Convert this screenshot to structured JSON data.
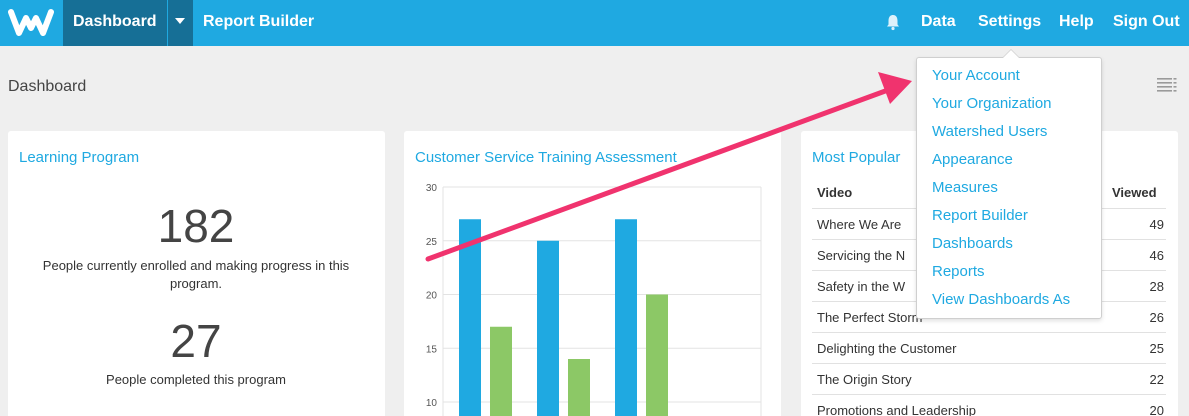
{
  "nav": {
    "dashboard": "Dashboard",
    "report_builder": "Report Builder",
    "data": "Data",
    "settings": "Settings",
    "help": "Help",
    "sign_out": "Sign Out"
  },
  "page": {
    "title": "Dashboard"
  },
  "learning_card": {
    "title": "Learning Program",
    "enrolled_value": "182",
    "enrolled_caption": "People currently enrolled and making progress in this program.",
    "completed_value": "27",
    "completed_caption": "People completed this program"
  },
  "chart_card": {
    "title": "Customer Service Training Assessment"
  },
  "chart_data": {
    "type": "bar",
    "title": "Customer Service Training Assessment",
    "y_ticks": [
      "30",
      "25",
      "20",
      "15",
      "10"
    ],
    "ylim": [
      10,
      30
    ],
    "grid": true,
    "series": [
      {
        "values": [
          27,
          25,
          27
        ],
        "color": "#1fa9e1"
      },
      {
        "values": [
          17,
          14,
          20
        ],
        "color": "#8cc866"
      }
    ]
  },
  "video_card": {
    "title": "Most Popular",
    "col_video": "Video",
    "col_viewed": "Viewed",
    "rows": [
      {
        "video": "Where We Are",
        "viewed": "49"
      },
      {
        "video": "Servicing the N",
        "viewed": "46"
      },
      {
        "video": "Safety in the W",
        "viewed": "28"
      },
      {
        "video": "The Perfect Storm",
        "viewed": "26"
      },
      {
        "video": "Delighting the Customer",
        "viewed": "25"
      },
      {
        "video": "The Origin Story",
        "viewed": "22"
      },
      {
        "video": "Promotions and Leadership",
        "viewed": "20"
      }
    ]
  },
  "settings_menu": {
    "items": [
      "Your Account",
      "Your Organization",
      "Watershed Users",
      "Appearance",
      "Measures",
      "Report Builder",
      "Dashboards",
      "Reports",
      "View Dashboards As"
    ]
  },
  "colors": {
    "brand": "#1fa9e1",
    "nav_active": "#166f96",
    "bar_blue": "#1fa9e1",
    "bar_green": "#8cc866",
    "annotation_arrow": "#f0336e"
  },
  "icons": {
    "logo": "watershed-w-logo",
    "bell": "bell-icon",
    "list": "list-view-icon",
    "caret": "chevron-down-icon"
  }
}
